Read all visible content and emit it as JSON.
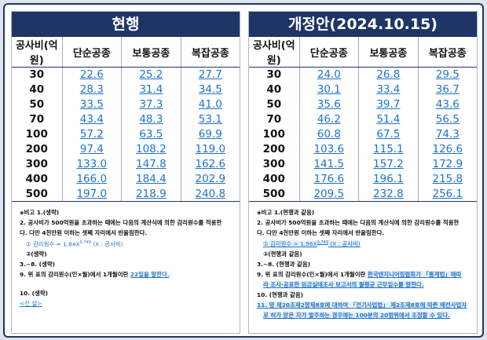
{
  "left": {
    "title": "현행",
    "headers": [
      "공사비(억원)",
      "단순공종",
      "보통공종",
      "복잡공종"
    ],
    "rows": [
      [
        "30",
        "22.6",
        "25.2",
        "27.7"
      ],
      [
        "40",
        "28.3",
        "31.4",
        "34.5"
      ],
      [
        "50",
        "33.5",
        "37.3",
        "41.0"
      ],
      [
        "70",
        "43.4",
        "48.3",
        "53.1"
      ],
      [
        "100",
        "57.2",
        "63.5",
        "69.9"
      ],
      [
        "200",
        "97.4",
        "108.2",
        "119.0"
      ],
      [
        "300",
        "133.0",
        "147.8",
        "162.6"
      ],
      [
        "400",
        "166.0",
        "184.4",
        "202.9"
      ],
      [
        "500",
        "197.0",
        "218.9",
        "240.8"
      ]
    ],
    "notes": {
      "n1": "◈비고 1.(생략)",
      "n2": "2. 공사비가 500억원을 초과하는 때에는 다음의 계산식에 의한 감리원수를 적용한",
      "n2b": "다. 다만 4천만원 이하는 셋째 자리에서 반올림한다.",
      "formula": "① 감리원수 = 1.84X",
      "formula_exp": "0.749",
      "formula_tail": " (X : 공사비)",
      "n2c": "②(생략)",
      "n3": "3.~8. (생략)",
      "n9a": "9. 위 표의 감리원수(인×월)에서 1개월이란 ",
      "n9b": "22일을 말한다.",
      "n10": "10. (생략)",
      "n10b": "<신 설>"
    }
  },
  "right": {
    "title": "개정안(2024.10.15)",
    "headers": [
      "공사비(억원)",
      "단순공종",
      "보통공종",
      "복잡공종"
    ],
    "rows": [
      [
        "30",
        "24.0",
        "26.8",
        "29.5"
      ],
      [
        "40",
        "30.1",
        "33.4",
        "36.7"
      ],
      [
        "50",
        "35.6",
        "39.7",
        "43.6"
      ],
      [
        "70",
        "46.2",
        "51.4",
        "56.5"
      ],
      [
        "100",
        "60.8",
        "67.5",
        "74.3"
      ],
      [
        "200",
        "103.6",
        "115.1",
        "126.6"
      ],
      [
        "300",
        "141.5",
        "157.2",
        "172.9"
      ],
      [
        "400",
        "176.6",
        "196.1",
        "215.8"
      ],
      [
        "500",
        "209.5",
        "232.8",
        "256.1"
      ]
    ],
    "notes": {
      "n1": "◈비고 1.(현행과 같음)",
      "n2": "2. 공사비가 500억원을 초과하는 때에는 다음의 계산식에 의한 감리원수를 적용한",
      "n2b": "다. 다만 4천만원 이하는 셋째 자리에서 반올림한다.",
      "formula": "① 감리원수 = 1.96X",
      "formula_exp": "0.749",
      "formula_tail": " (X : 공사비)",
      "n2c": "②(현행과 같음)",
      "n3": "3.~8. (현행과 같음)",
      "n9a": "9. 위 표의 감리원수(인×월)에서 1개월이란 ",
      "n9b": "한국엔지니어링협회가 「통계법」에따",
      "n9c": "라 조사·공표한 임금실태조사 보고서의 월평균 근무일수를 말한다.",
      "n10": "10. (현행과 같음)",
      "n11": "11. 영 제20조제2항제8호에 대하여 「전기사업법」 제2조제8호에 따른 배전사업자",
      "n11b": "로 허가 받은 자가 발주하는 경우에는 100분의 20범위에서 조정할 수 있다."
    }
  },
  "colors": {
    "header_bg": "#1f3566",
    "value_blue": "#1e73c8"
  }
}
